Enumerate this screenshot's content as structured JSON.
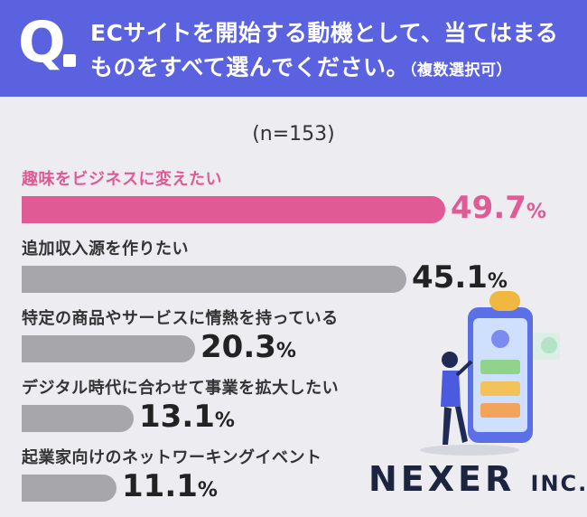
{
  "question": {
    "mark": "Q",
    "line1": "ECサイトを開始する動機として、当てはまる",
    "line2": "ものをすべて選んでください。",
    "note": "（複数選択可）"
  },
  "sample_size": "(n=153)",
  "percent_sign": "%",
  "logo": {
    "name": "NEXER",
    "suffix": "INC."
  },
  "colors": {
    "header": "#5a62e0",
    "highlight": "#e05a95",
    "bar": "#a7a7ab"
  },
  "chart_data": {
    "type": "bar",
    "orientation": "horizontal",
    "categories": [
      "趣味をビジネスに変えたい",
      "追加収入源を作りたい",
      "特定の商品やサービスに情熱を持っている",
      "デジタル時代に合わせて事業を拡大したい",
      "起業家向けのネットワーキングイベント"
    ],
    "values": [
      49.7,
      45.1,
      20.3,
      13.1,
      11.1
    ],
    "value_labels": [
      "49.7",
      "45.1",
      "20.3",
      "13.1",
      "11.1"
    ],
    "highlight_index": 0,
    "xlim": [
      0,
      50
    ],
    "grid": false
  }
}
